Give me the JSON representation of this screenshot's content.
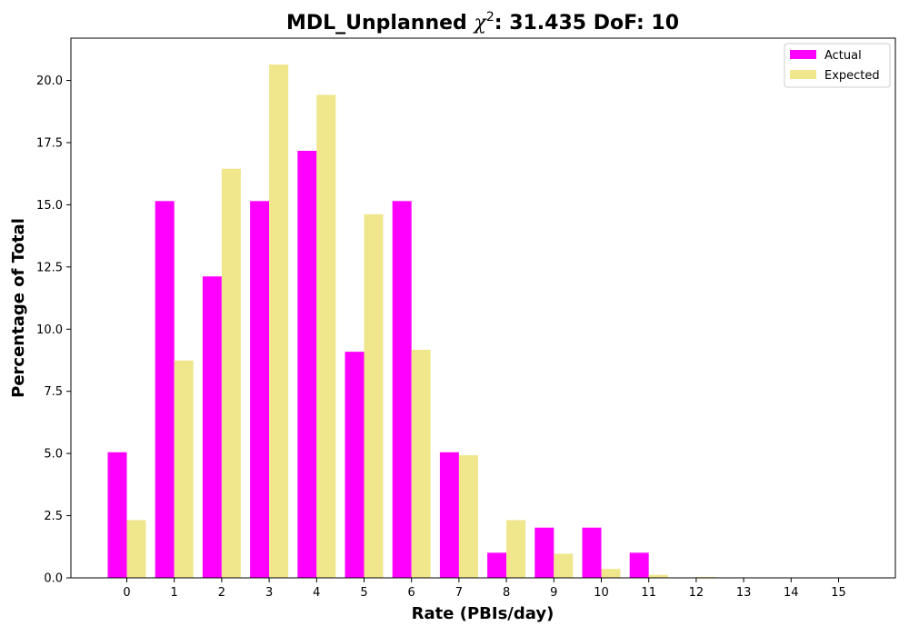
{
  "chart_data": {
    "type": "bar",
    "title": {
      "prefix": "MDL_Unplanned ",
      "chi_symbol": "χ",
      "chi_exponent": "2",
      "suffix": ": 31.435 DoF: 10"
    },
    "xlabel": "Rate (PBIs/day)",
    "ylabel": "Percentage of Total",
    "categories": [
      "0",
      "1",
      "2",
      "3",
      "4",
      "5",
      "6",
      "7",
      "8",
      "9",
      "10",
      "11",
      "12",
      "13",
      "14",
      "15"
    ],
    "yticks": [
      "0.0",
      "2.5",
      "5.0",
      "7.5",
      "10.0",
      "12.5",
      "15.0",
      "17.5",
      "20.0"
    ],
    "ylim": [
      0,
      21.7
    ],
    "legend_position": "upper-right",
    "series": [
      {
        "name": "Actual",
        "color": "#ff00ff",
        "values": [
          5.05,
          15.15,
          12.12,
          15.15,
          17.17,
          9.09,
          15.15,
          5.05,
          1.01,
          2.02,
          2.02,
          1.01,
          0,
          0,
          0,
          0
        ]
      },
      {
        "name": "Expected",
        "color": "#f0e68c",
        "values": [
          2.32,
          8.74,
          16.45,
          20.64,
          19.42,
          14.62,
          9.17,
          4.93,
          2.32,
          0.97,
          0.36,
          0.12,
          0.04,
          0.01,
          0.003,
          0.001
        ]
      }
    ]
  }
}
